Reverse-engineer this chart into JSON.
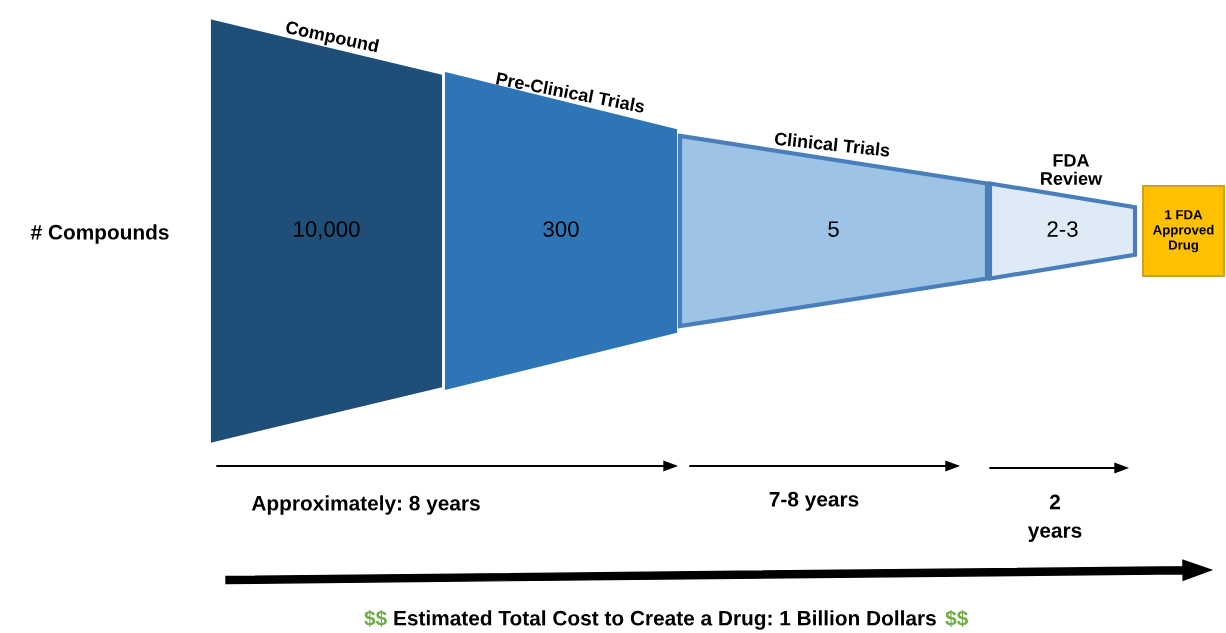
{
  "chart_data": {
    "type": "other",
    "ylabel": "# Compounds",
    "categories": [
      "Compound",
      "Pre-Clinical Trials",
      "Clinical Trials",
      "FDA\nReview",
      null
    ],
    "values": [
      10000,
      300,
      5,
      null,
      null
    ],
    "value_labels": [
      "10,000",
      "300",
      "5",
      "2-3",
      "1 FDA\nApproved\nDrug"
    ],
    "colors": [
      "#1f4e79",
      "#2e75b6",
      "#9dc3e6",
      "#deebf7",
      "#ffc000"
    ],
    "annotations": [
      "Approximately: 8 years",
      "7-8 years",
      "2\nyears",
      "$$ Estimated Total Cost to Create a Drug: 1 Billion Dollars $$"
    ]
  }
}
